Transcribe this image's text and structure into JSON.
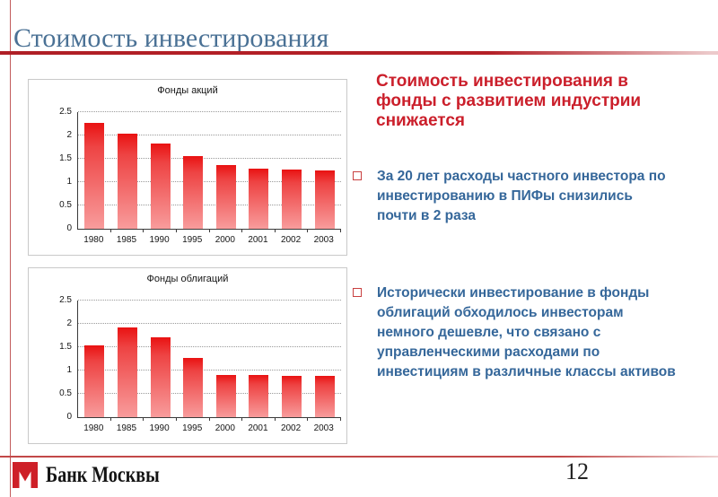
{
  "slide": {
    "title": "Стоимость инвестирования",
    "page_number": "12"
  },
  "right_panel": {
    "heading": "Стоимость инвестирования в\nфонды с развитием индустрии\nснижается",
    "bullets": [
      {
        "text": "За 20 лет расходы частного инвестора по\nинвестированию в ПИФы снизились\nпочти в 2 раза"
      },
      {
        "text": "Исторически инвестирование в фонды\nоблигаций обходилось инвесторам\nнемного дешевле, что связано с\nуправленческими расходами по\nинвестициям в различные классы активов"
      }
    ]
  },
  "footer": {
    "bank_name": "Банк Москвы"
  },
  "colors": {
    "accent_red_rule": "#b41f26",
    "heading_red": "#cb1f2b",
    "body_blue": "#35679a",
    "title_blue": "#4a7195",
    "bar_gradient_top": "#e91212",
    "bar_gradient_bottom": "#f89c9c",
    "logo_red": "#ce2028"
  },
  "icons": {
    "bullet_square": "red-outline-square",
    "logo_mark": "bank-moskvy-m"
  },
  "chart_data": [
    {
      "type": "bar",
      "title": "Фонды акций",
      "categories": [
        "1980",
        "1985",
        "1990",
        "1995",
        "2000",
        "2001",
        "2002",
        "2003"
      ],
      "values": [
        2.26,
        2.03,
        1.82,
        1.55,
        1.36,
        1.29,
        1.27,
        1.25
      ],
      "xlabel": "",
      "ylabel": "",
      "ylim": [
        0,
        2.5
      ],
      "y_ticks": [
        0,
        0.5,
        1,
        1.5,
        2,
        2.5
      ],
      "grid": "horizontal-dotted",
      "legend": "none"
    },
    {
      "type": "bar",
      "title": "Фонды облигаций",
      "categories": [
        "1980",
        "1985",
        "1990",
        "1995",
        "2000",
        "2001",
        "2002",
        "2003"
      ],
      "values": [
        1.54,
        1.92,
        1.71,
        1.26,
        0.9,
        0.91,
        0.88,
        0.88
      ],
      "xlabel": "",
      "ylabel": "",
      "ylim": [
        0,
        2.5
      ],
      "y_ticks": [
        0,
        0.5,
        1,
        1.5,
        2,
        2.5
      ],
      "grid": "horizontal-dotted",
      "legend": "none"
    }
  ]
}
